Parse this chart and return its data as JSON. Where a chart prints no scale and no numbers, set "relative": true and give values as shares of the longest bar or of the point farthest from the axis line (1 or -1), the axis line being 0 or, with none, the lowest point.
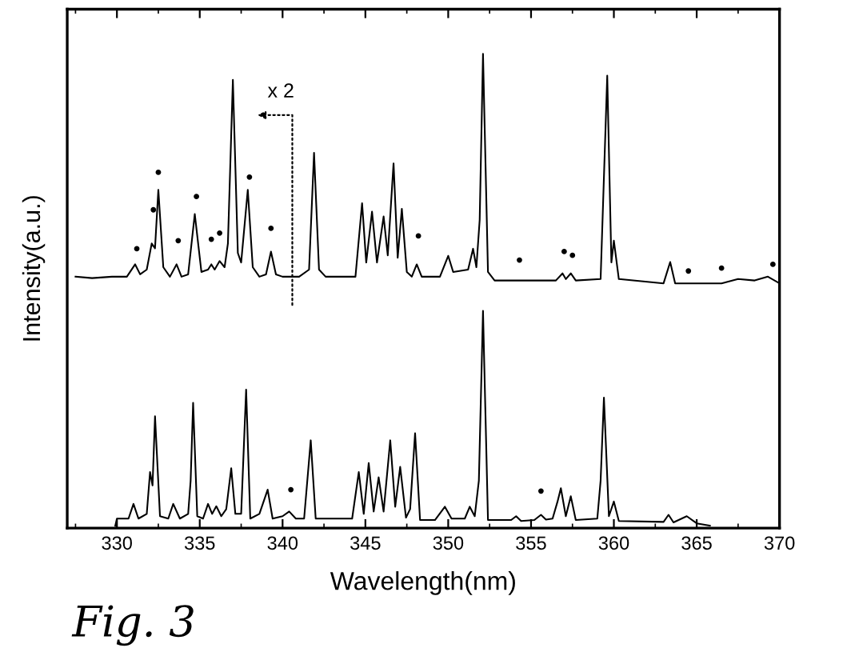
{
  "chart_data": {
    "type": "line",
    "relative": true,
    "xlabel": "Wavelength(nm)",
    "ylabel": "Intensity(a.u.)",
    "xlim": [
      327,
      370
    ],
    "xticks": [
      {
        "value": 327.5,
        "label": null
      },
      330,
      {
        "value": 332.5,
        "label": null
      },
      335,
      {
        "value": 337.5,
        "label": null
      },
      340,
      {
        "value": 342.5,
        "label": null
      },
      345,
      {
        "value": 347.5,
        "label": null
      },
      350,
      {
        "value": 352.5,
        "label": null
      },
      355,
      {
        "value": 357.5,
        "label": null
      },
      360,
      {
        "value": 362.5,
        "label": null
      },
      365,
      {
        "value": 367.5,
        "label": null
      },
      370
    ],
    "grid": false,
    "legend": false,
    "marker": "none",
    "line_style": "solid",
    "annotations": [
      "Fig. 3",
      "x 2"
    ],
    "series": [
      {
        "color": "#000000",
        "x": [
          327.5,
          328.5,
          329.7,
          330.6,
          331.1,
          331.4,
          331.8,
          332.1,
          332.3,
          332.5,
          332.8,
          333.2,
          333.6,
          333.9,
          334.3,
          334.7,
          335.1,
          335.5,
          335.7,
          335.9,
          336.2,
          336.5,
          336.7,
          337.0,
          337.3,
          337.5,
          337.9,
          338.2,
          338.6,
          339.0,
          339.3,
          339.6,
          340.0,
          341.0,
          341.6,
          341.9,
          342.2,
          342.6,
          344.4,
          344.8,
          345.05,
          345.4,
          345.7,
          346.1,
          346.35,
          346.7,
          346.95,
          347.2,
          347.5,
          347.8,
          348.1,
          348.4,
          349.5,
          350.0,
          350.3,
          351.2,
          351.5,
          351.7,
          351.9,
          352.1,
          352.4,
          352.8,
          356.5,
          356.9,
          357.1,
          357.4,
          357.7,
          359.2,
          359.6,
          359.85,
          360.0,
          360.3,
          363.0,
          363.4,
          363.7,
          366.5,
          367.5,
          368.5,
          369.3,
          370.0
        ],
        "values": [
          0.53,
          0.527,
          0.53,
          0.53,
          0.556,
          0.535,
          0.545,
          0.6,
          0.59,
          0.713,
          0.55,
          0.53,
          0.556,
          0.53,
          0.535,
          0.662,
          0.54,
          0.545,
          0.556,
          0.545,
          0.563,
          0.55,
          0.6,
          0.945,
          0.58,
          0.56,
          0.713,
          0.55,
          0.53,
          0.535,
          0.583,
          0.535,
          0.53,
          0.53,
          0.545,
          0.791,
          0.545,
          0.53,
          0.53,
          0.685,
          0.56,
          0.667,
          0.56,
          0.657,
          0.575,
          0.769,
          0.57,
          0.673,
          0.54,
          0.53,
          0.556,
          0.53,
          0.53,
          0.574,
          0.54,
          0.545,
          0.589,
          0.55,
          0.65,
          1.0,
          0.54,
          0.522,
          0.522,
          0.537,
          0.525,
          0.537,
          0.522,
          0.525,
          0.954,
          0.56,
          0.606,
          0.525,
          0.516,
          0.561,
          0.516,
          0.516,
          0.525,
          0.522,
          0.53,
          0.516
        ]
      },
      {
        "color": "#000000",
        "x": [
          329.9,
          330.0,
          330.7,
          331.0,
          331.3,
          331.8,
          332.0,
          332.15,
          332.3,
          332.6,
          333.1,
          333.4,
          333.8,
          334.3,
          334.45,
          334.6,
          334.85,
          335.2,
          335.5,
          335.75,
          336.0,
          336.3,
          336.6,
          336.9,
          337.15,
          337.5,
          337.8,
          338.05,
          338.6,
          339.1,
          339.4,
          340.0,
          340.4,
          340.8,
          341.3,
          341.7,
          342.0,
          344.2,
          344.6,
          344.9,
          345.2,
          345.5,
          345.8,
          346.1,
          346.5,
          346.8,
          347.1,
          347.45,
          347.7,
          348.0,
          348.3,
          349.2,
          349.8,
          350.2,
          351.0,
          351.3,
          351.6,
          351.85,
          352.1,
          352.4,
          353.8,
          354.1,
          354.4,
          355.2,
          355.6,
          355.9,
          356.3,
          356.6,
          356.8,
          357.1,
          357.4,
          357.7,
          359.0,
          359.2,
          359.4,
          359.7,
          360.0,
          360.3,
          363.0,
          363.3,
          363.6,
          364.4,
          365.0,
          365.8
        ],
        "values": [
          0.005,
          0.02,
          0.02,
          0.051,
          0.02,
          0.03,
          0.118,
          0.09,
          0.236,
          0.025,
          0.02,
          0.051,
          0.02,
          0.03,
          0.1,
          0.264,
          0.025,
          0.02,
          0.051,
          0.03,
          0.046,
          0.025,
          0.04,
          0.126,
          0.03,
          0.03,
          0.292,
          0.02,
          0.03,
          0.081,
          0.02,
          0.025,
          0.035,
          0.02,
          0.02,
          0.185,
          0.02,
          0.02,
          0.118,
          0.03,
          0.137,
          0.035,
          0.107,
          0.035,
          0.185,
          0.045,
          0.129,
          0.022,
          0.04,
          0.2,
          0.017,
          0.017,
          0.045,
          0.02,
          0.02,
          0.045,
          0.025,
          0.1,
          0.458,
          0.017,
          0.017,
          0.025,
          0.015,
          0.017,
          0.028,
          0.018,
          0.02,
          0.056,
          0.084,
          0.025,
          0.067,
          0.017,
          0.02,
          0.1,
          0.275,
          0.025,
          0.056,
          0.015,
          0.013,
          0.028,
          0.012,
          0.025,
          0.01,
          0.005
        ]
      },
      {
        "type": "scatter",
        "color": "#000000",
        "marker": "circle",
        "x": [
          331.2,
          332.2,
          332.5,
          333.7,
          334.8,
          335.7,
          336.2,
          338.0,
          339.3,
          348.2,
          354.3,
          357.0,
          357.5,
          364.5,
          366.5,
          369.6,
          340.5,
          355.6
        ],
        "values": [
          0.589,
          0.671,
          0.75,
          0.606,
          0.699,
          0.609,
          0.622,
          0.74,
          0.632,
          0.616,
          0.565,
          0.583,
          0.575,
          0.542,
          0.548,
          0.556,
          0.081,
          0.078
        ]
      }
    ]
  }
}
